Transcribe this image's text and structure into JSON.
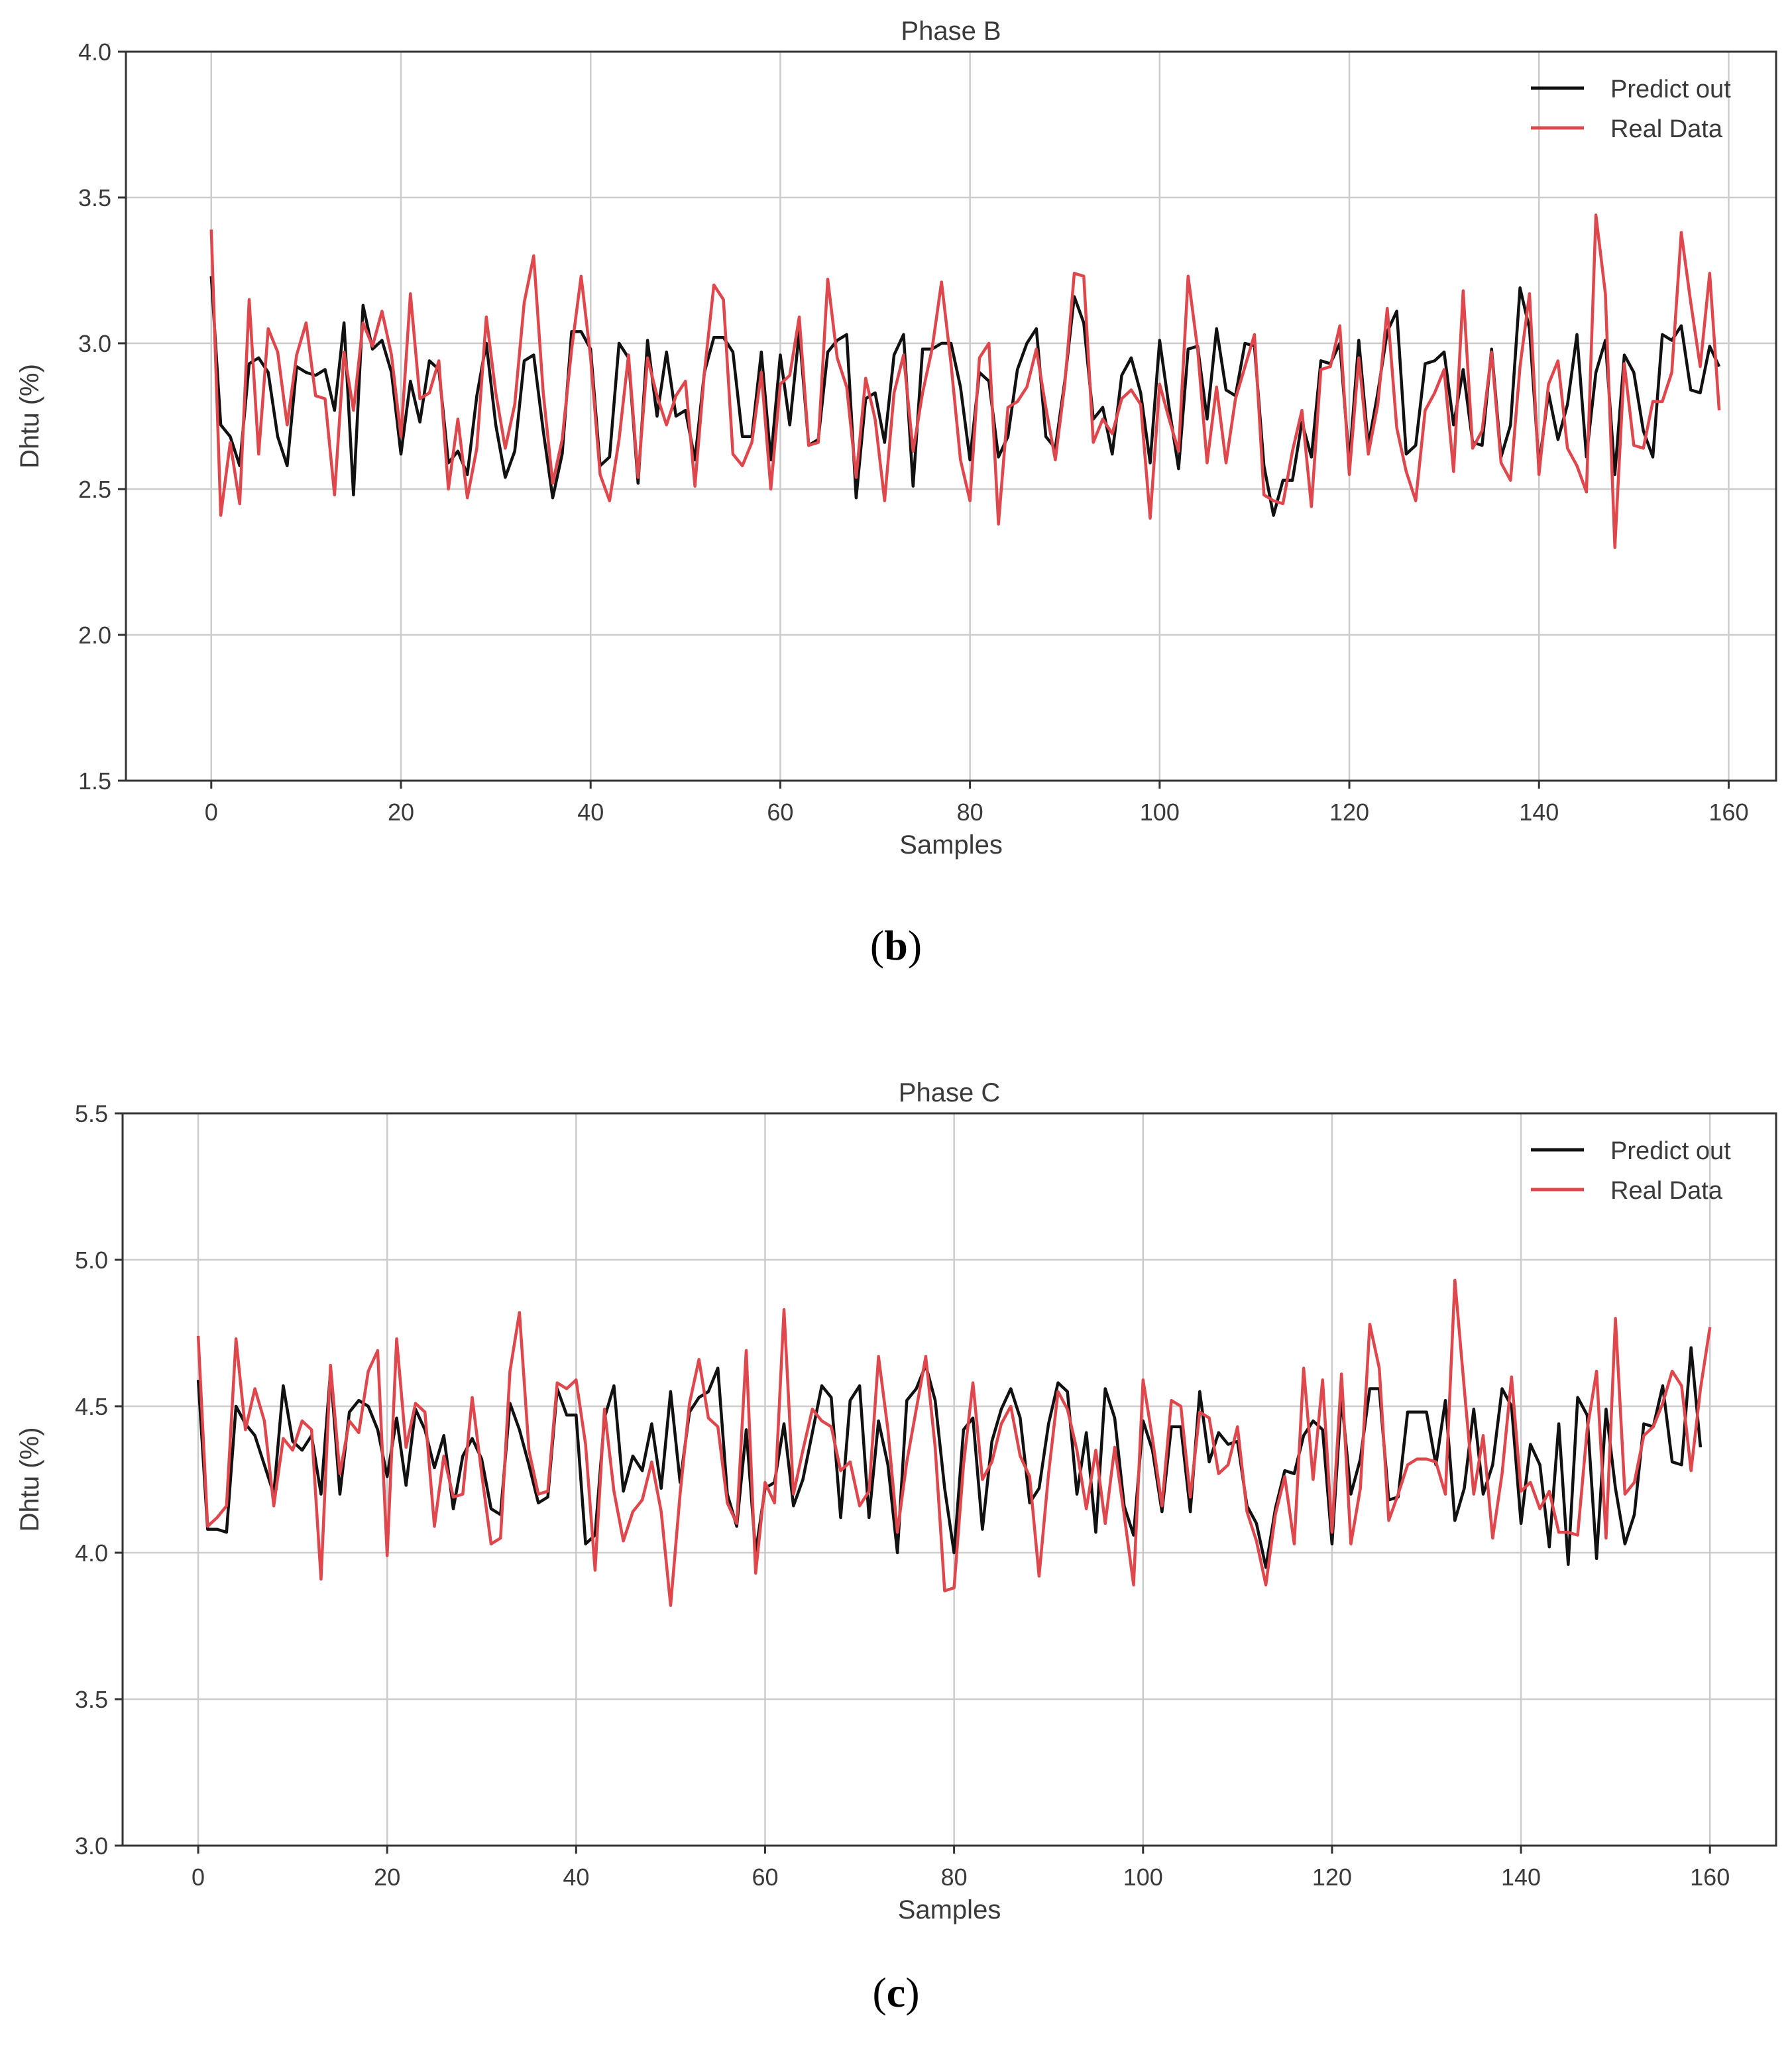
{
  "colors": {
    "predict": "#111111",
    "real": "#e0474c",
    "grid": "#cccccc",
    "axis": "#333333"
  },
  "chart_data": [
    {
      "type": "line",
      "title": "Phase B",
      "xlabel": "Samples",
      "ylabel": "Dhtu (%)",
      "xlim": [
        -9,
        165
      ],
      "ylim": [
        1.5,
        4.0
      ],
      "xticks": [
        0,
        20,
        40,
        60,
        80,
        100,
        120,
        140,
        160
      ],
      "yticks": [
        1.5,
        2.0,
        2.5,
        3.0,
        3.5,
        4.0
      ],
      "grid": true,
      "legend_position": "top-right",
      "caption": {
        "open": "(",
        "letter": "b",
        "close": ")"
      },
      "series": [
        {
          "name": "Predict out",
          "color": "#111111",
          "values": [
            3.23,
            2.72,
            2.68,
            2.58,
            2.93,
            2.95,
            2.9,
            2.68,
            2.58,
            2.92,
            2.9,
            2.89,
            2.91,
            2.77,
            3.07,
            2.48,
            3.13,
            2.98,
            3.01,
            2.9,
            2.62,
            2.87,
            2.73,
            2.94,
            2.91,
            2.59,
            2.63,
            2.55,
            2.82,
            3.0,
            2.72,
            2.54,
            2.63,
            2.94,
            2.96,
            2.7,
            2.47,
            2.62,
            3.04,
            3.04,
            2.98,
            2.58,
            2.61,
            3.0,
            2.95,
            2.52,
            3.01,
            2.75,
            2.97,
            2.75,
            2.77,
            2.6,
            2.9,
            3.02,
            3.02,
            2.97,
            2.68,
            2.68,
            2.97,
            2.6,
            2.96,
            2.72,
            3.04,
            2.65,
            2.67,
            2.97,
            3.01,
            3.03,
            2.47,
            2.81,
            2.83,
            2.66,
            2.96,
            3.03,
            2.51,
            2.98,
            2.98,
            3.0,
            3.0,
            2.85,
            2.6,
            2.9,
            2.87,
            2.61,
            2.68,
            2.91,
            3.0,
            3.05,
            2.68,
            2.64,
            2.87,
            3.16,
            3.07,
            2.74,
            2.78,
            2.62,
            2.89,
            2.95,
            2.83,
            2.59,
            3.01,
            2.78,
            2.57,
            2.98,
            2.99,
            2.74,
            3.05,
            2.84,
            2.82,
            3.0,
            2.99,
            2.58,
            2.41,
            2.53,
            2.53,
            2.73,
            2.61,
            2.94,
            2.93,
            3.0,
            2.59,
            3.01,
            2.65,
            2.83,
            3.04,
            3.11,
            2.62,
            2.65,
            2.93,
            2.94,
            2.97,
            2.72,
            2.91,
            2.66,
            2.65,
            2.98,
            2.61,
            2.72,
            3.19,
            3.05,
            2.58,
            2.83,
            2.67,
            2.79,
            3.03,
            2.61,
            2.9,
            3.01,
            2.55,
            2.96,
            2.9,
            2.7,
            2.61,
            3.03,
            3.01,
            3.06,
            2.84,
            2.83,
            2.99,
            2.92
          ]
        },
        {
          "name": "Real Data",
          "color": "#e0474c",
          "values": [
            3.39,
            2.41,
            2.66,
            2.45,
            3.15,
            2.62,
            3.05,
            2.97,
            2.72,
            2.96,
            3.07,
            2.82,
            2.81,
            2.48,
            2.97,
            2.77,
            3.07,
            2.99,
            3.11,
            2.96,
            2.68,
            3.17,
            2.81,
            2.83,
            2.94,
            2.5,
            2.74,
            2.47,
            2.64,
            3.09,
            2.83,
            2.64,
            2.79,
            3.14,
            3.3,
            2.83,
            2.52,
            2.67,
            2.98,
            3.23,
            2.95,
            2.55,
            2.46,
            2.67,
            2.96,
            2.54,
            2.95,
            2.82,
            2.72,
            2.82,
            2.87,
            2.51,
            2.9,
            3.2,
            3.15,
            2.62,
            2.58,
            2.66,
            2.9,
            2.5,
            2.86,
            2.89,
            3.09,
            2.65,
            2.66,
            3.22,
            2.95,
            2.85,
            2.54,
            2.88,
            2.74,
            2.46,
            2.83,
            2.96,
            2.63,
            2.83,
            2.98,
            3.21,
            2.93,
            2.6,
            2.46,
            2.95,
            3.0,
            2.38,
            2.78,
            2.8,
            2.85,
            2.98,
            2.78,
            2.6,
            2.86,
            3.24,
            3.23,
            2.66,
            2.74,
            2.69,
            2.81,
            2.84,
            2.79,
            2.4,
            2.86,
            2.74,
            2.63,
            3.23,
            2.98,
            2.59,
            2.85,
            2.59,
            2.81,
            2.92,
            3.03,
            2.48,
            2.46,
            2.45,
            2.63,
            2.77,
            2.44,
            2.91,
            2.92,
            3.06,
            2.55,
            2.95,
            2.62,
            2.79,
            3.12,
            2.71,
            2.56,
            2.46,
            2.77,
            2.83,
            2.91,
            2.56,
            3.18,
            2.64,
            2.7,
            2.97,
            2.59,
            2.53,
            2.92,
            3.17,
            2.55,
            2.86,
            2.94,
            2.64,
            2.58,
            2.49,
            3.44,
            3.17,
            2.3,
            2.93,
            2.65,
            2.64,
            2.8,
            2.8,
            2.9,
            3.38,
            3.14,
            2.92,
            3.24,
            2.77
          ]
        }
      ]
    },
    {
      "type": "line",
      "title": "Phase C",
      "xlabel": "Samples",
      "ylabel": "Dhtu (%)",
      "xlim": [
        -8,
        167
      ],
      "ylim": [
        3.0,
        5.5
      ],
      "xticks": [
        0,
        20,
        40,
        60,
        80,
        100,
        120,
        140,
        160
      ],
      "yticks": [
        3.0,
        3.5,
        4.0,
        4.5,
        5.0,
        5.5
      ],
      "grid": true,
      "legend_position": "top-right",
      "caption": {
        "open": "(",
        "letter": "c",
        "close": ")"
      },
      "series": [
        {
          "name": "Predict out",
          "color": "#111111",
          "values": [
            4.59,
            4.08,
            4.08,
            4.07,
            4.5,
            4.44,
            4.4,
            4.3,
            4.2,
            4.57,
            4.38,
            4.35,
            4.4,
            4.2,
            4.62,
            4.2,
            4.48,
            4.52,
            4.5,
            4.42,
            4.26,
            4.46,
            4.23,
            4.49,
            4.42,
            4.29,
            4.4,
            4.15,
            4.33,
            4.39,
            4.32,
            4.15,
            4.13,
            4.51,
            4.42,
            4.3,
            4.17,
            4.19,
            4.56,
            4.47,
            4.47,
            4.03,
            4.06,
            4.46,
            4.57,
            4.21,
            4.33,
            4.28,
            4.44,
            4.22,
            4.55,
            4.24,
            4.48,
            4.53,
            4.55,
            4.63,
            4.2,
            4.09,
            4.42,
            4.0,
            4.22,
            4.24,
            4.44,
            4.16,
            4.25,
            4.41,
            4.57,
            4.53,
            4.12,
            4.52,
            4.57,
            4.12,
            4.45,
            4.3,
            4.0,
            4.52,
            4.56,
            4.64,
            4.52,
            4.22,
            4.0,
            4.42,
            4.46,
            4.08,
            4.38,
            4.49,
            4.56,
            4.46,
            4.17,
            4.22,
            4.44,
            4.58,
            4.55,
            4.2,
            4.41,
            4.07,
            4.56,
            4.46,
            4.16,
            4.06,
            4.45,
            4.35,
            4.14,
            4.43,
            4.43,
            4.14,
            4.55,
            4.31,
            4.41,
            4.37,
            4.38,
            4.16,
            4.1,
            3.95,
            4.15,
            4.28,
            4.27,
            4.4,
            4.45,
            4.42,
            4.03,
            4.53,
            4.2,
            4.32,
            4.56,
            4.56,
            4.18,
            4.19,
            4.48,
            4.48,
            4.48,
            4.3,
            4.52,
            4.11,
            4.22,
            4.49,
            4.2,
            4.3,
            4.56,
            4.5,
            4.1,
            4.37,
            4.3,
            4.02,
            4.44,
            3.96,
            4.53,
            4.47,
            3.98,
            4.49,
            4.22,
            4.03,
            4.13,
            4.44,
            4.43,
            4.57,
            4.31,
            4.3,
            4.7,
            4.36
          ]
        },
        {
          "name": "Real Data",
          "color": "#e0474c",
          "values": [
            4.74,
            4.09,
            4.12,
            4.16,
            4.73,
            4.42,
            4.56,
            4.45,
            4.16,
            4.39,
            4.35,
            4.45,
            4.42,
            3.91,
            4.64,
            4.27,
            4.45,
            4.41,
            4.62,
            4.69,
            3.99,
            4.73,
            4.36,
            4.51,
            4.48,
            4.09,
            4.33,
            4.19,
            4.2,
            4.53,
            4.27,
            4.03,
            4.05,
            4.62,
            4.82,
            4.35,
            4.2,
            4.21,
            4.58,
            4.56,
            4.59,
            4.37,
            3.94,
            4.49,
            4.21,
            4.04,
            4.14,
            4.18,
            4.31,
            4.14,
            3.82,
            4.2,
            4.51,
            4.66,
            4.46,
            4.43,
            4.17,
            4.1,
            4.69,
            3.93,
            4.24,
            4.17,
            4.83,
            4.2,
            4.35,
            4.49,
            4.45,
            4.43,
            4.28,
            4.31,
            4.16,
            4.21,
            4.67,
            4.42,
            4.07,
            4.31,
            4.49,
            4.67,
            4.36,
            3.87,
            3.88,
            4.3,
            4.58,
            4.25,
            4.31,
            4.44,
            4.5,
            4.33,
            4.26,
            3.92,
            4.27,
            4.55,
            4.49,
            4.35,
            4.15,
            4.35,
            4.1,
            4.36,
            4.13,
            3.89,
            4.59,
            4.39,
            4.16,
            4.52,
            4.5,
            4.19,
            4.48,
            4.46,
            4.27,
            4.3,
            4.43,
            4.14,
            4.04,
            3.89,
            4.13,
            4.26,
            4.03,
            4.63,
            4.25,
            4.59,
            4.07,
            4.61,
            4.03,
            4.22,
            4.78,
            4.63,
            4.11,
            4.2,
            4.3,
            4.32,
            4.32,
            4.31,
            4.2,
            4.93,
            4.56,
            4.2,
            4.4,
            4.05,
            4.27,
            4.6,
            4.21,
            4.24,
            4.15,
            4.21,
            4.07,
            4.07,
            4.06,
            4.42,
            4.62,
            4.05,
            4.8,
            4.2,
            4.24,
            4.4,
            4.43,
            4.51,
            4.62,
            4.57,
            4.28,
            4.56,
            4.77
          ]
        }
      ]
    }
  ]
}
